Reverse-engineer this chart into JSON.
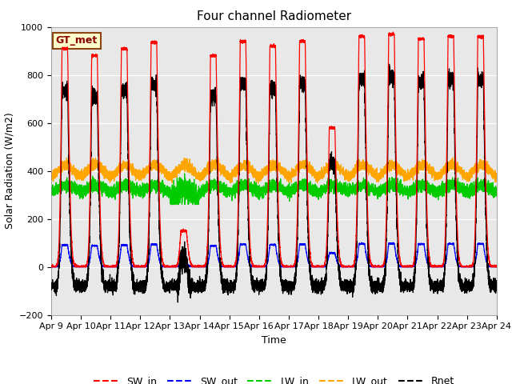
{
  "title": "Four channel Radiometer",
  "xlabel": "Time",
  "ylabel": "Solar Radiation (W/m2)",
  "ylim": [
    -200,
    1000
  ],
  "xlim": [
    0,
    15
  ],
  "xtick_labels": [
    "Apr 9",
    "Apr 10",
    "Apr 11",
    "Apr 12",
    "Apr 13",
    "Apr 14",
    "Apr 15",
    "Apr 16",
    "Apr 17",
    "Apr 18",
    "Apr 19",
    "Apr 20",
    "Apr 21",
    "Apr 22",
    "Apr 23",
    "Apr 24"
  ],
  "legend_labels": [
    "SW_in",
    "SW_out",
    "LW_in",
    "LW_out",
    "Rnet"
  ],
  "colors": {
    "SW_in": "#ff0000",
    "SW_out": "#0000ff",
    "LW_in": "#00cc00",
    "LW_out": "#ffa500",
    "Rnet": "#000000"
  },
  "annotation_text": "GT_met",
  "background_color": "#e8e8e8",
  "title_fontsize": 11,
  "axis_fontsize": 9,
  "legend_fontsize": 9,
  "peak_heights_sw": [
    910,
    880,
    910,
    935,
    150,
    880,
    940,
    920,
    940,
    580,
    960,
    970,
    950,
    960,
    960
  ],
  "lw_in_base": 305,
  "lw_out_base": 365,
  "night_rnet": -80
}
